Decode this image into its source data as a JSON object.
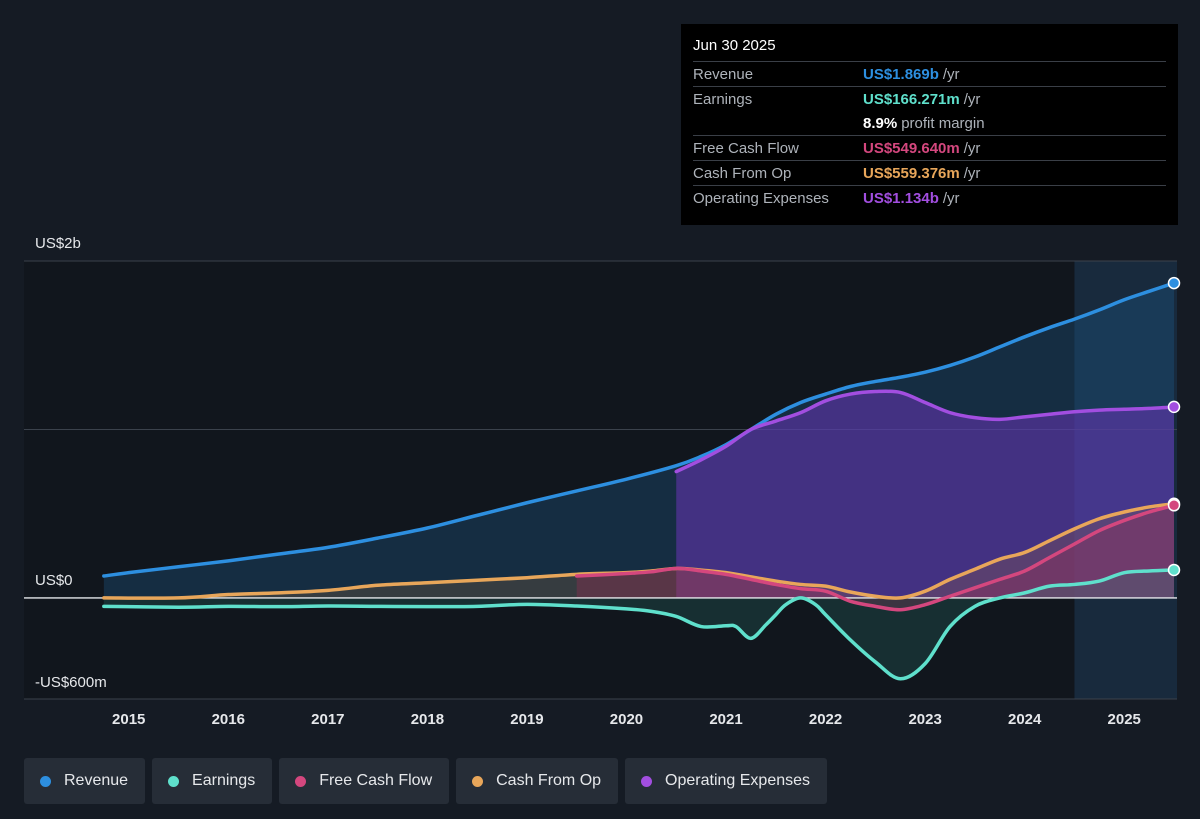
{
  "tooltip": {
    "date": "Jun 30 2025",
    "rows": [
      {
        "label": "Revenue",
        "value": "US$1.869b",
        "unit": "/yr",
        "color": "#2d8fe0"
      },
      {
        "label": "Earnings",
        "value": "US$166.271m",
        "unit": "/yr",
        "color": "#5fe0cc"
      },
      {
        "label": "",
        "value": "8.9%",
        "unit": "profit margin",
        "color": "#ffffff"
      },
      {
        "label": "Free Cash Flow",
        "value": "US$549.640m",
        "unit": "/yr",
        "color": "#d4477e"
      },
      {
        "label": "Cash From Op",
        "value": "US$559.376m",
        "unit": "/yr",
        "color": "#e8a65a"
      },
      {
        "label": "Operating Expenses",
        "value": "US$1.134b",
        "unit": "/yr",
        "color": "#a24ee0"
      }
    ]
  },
  "legend": [
    {
      "label": "Revenue",
      "color": "#2d8fe0"
    },
    {
      "label": "Earnings",
      "color": "#5fe0cc"
    },
    {
      "label": "Free Cash Flow",
      "color": "#d4477e"
    },
    {
      "label": "Cash From Op",
      "color": "#e8a65a"
    },
    {
      "label": "Operating Expenses",
      "color": "#a24ee0"
    }
  ],
  "chart_data": {
    "type": "area",
    "y_tick_labels": [
      "US$2b",
      "US$0",
      "-US$600m"
    ],
    "ylim": [
      -600,
      2000
    ],
    "xlim": [
      2014.4,
      2025.5
    ],
    "x_ticks": [
      2015,
      2016,
      2017,
      2018,
      2019,
      2020,
      2021,
      2022,
      2023,
      2024,
      2025
    ],
    "x_tick_labels": [
      "2015",
      "2016",
      "2017",
      "2018",
      "2019",
      "2020",
      "2021",
      "2022",
      "2023",
      "2024",
      "2025"
    ],
    "highlight_range": [
      2024.5,
      2025.5
    ],
    "series": [
      {
        "name": "Revenue",
        "color": "#2d8fe0",
        "x": [
          2014.75,
          2015.0,
          2015.5,
          2016.0,
          2016.5,
          2017.0,
          2017.5,
          2018.0,
          2018.5,
          2019.0,
          2019.5,
          2020.0,
          2020.5,
          2020.75,
          2021.0,
          2021.25,
          2021.5,
          2021.75,
          2022.0,
          2022.25,
          2022.5,
          2022.75,
          2023.0,
          2023.25,
          2023.5,
          2023.75,
          2024.0,
          2024.25,
          2024.5,
          2024.75,
          2025.0,
          2025.25,
          2025.5
        ],
        "values": [
          130,
          150,
          185,
          220,
          260,
          300,
          355,
          415,
          490,
          565,
          635,
          705,
          785,
          840,
          910,
          1000,
          1090,
          1160,
          1210,
          1255,
          1285,
          1310,
          1340,
          1380,
          1430,
          1490,
          1550,
          1605,
          1655,
          1710,
          1770,
          1820,
          1869
        ]
      },
      {
        "name": "Earnings",
        "color": "#5fe0cc",
        "x": [
          2014.75,
          2015.5,
          2016.0,
          2016.5,
          2017.0,
          2017.5,
          2018.0,
          2018.5,
          2019.0,
          2019.5,
          2020.0,
          2020.25,
          2020.5,
          2020.75,
          2021.0,
          2021.1,
          2021.25,
          2021.4,
          2021.5,
          2021.6,
          2021.75,
          2021.9,
          2022.0,
          2022.25,
          2022.5,
          2022.75,
          2023.0,
          2023.25,
          2023.5,
          2023.75,
          2024.0,
          2024.25,
          2024.5,
          2024.75,
          2025.0,
          2025.25,
          2025.5
        ],
        "values": [
          -50,
          -55,
          -50,
          -52,
          -48,
          -50,
          -52,
          -50,
          -38,
          -48,
          -65,
          -80,
          -110,
          -170,
          -165,
          -170,
          -240,
          -160,
          -100,
          -40,
          0,
          -40,
          -100,
          -250,
          -380,
          -480,
          -390,
          -170,
          -50,
          0,
          30,
          70,
          80,
          100,
          150,
          160,
          166
        ]
      },
      {
        "name": "Free Cash Flow",
        "color": "#d4477e",
        "x": [
          2019.5,
          2020.0,
          2020.25,
          2020.5,
          2020.75,
          2021.0,
          2021.25,
          2021.5,
          2021.75,
          2022.0,
          2022.25,
          2022.5,
          2022.75,
          2023.0,
          2023.25,
          2023.5,
          2023.75,
          2024.0,
          2024.25,
          2024.5,
          2024.75,
          2025.0,
          2025.25,
          2025.5
        ],
        "values": [
          130,
          145,
          155,
          175,
          160,
          140,
          110,
          80,
          55,
          40,
          -20,
          -50,
          -70,
          -40,
          10,
          60,
          110,
          160,
          240,
          320,
          400,
          460,
          510,
          550
        ]
      },
      {
        "name": "Cash From Op",
        "color": "#e8a65a",
        "x": [
          2014.75,
          2015.5,
          2016.0,
          2016.5,
          2017.0,
          2017.5,
          2018.0,
          2018.5,
          2019.0,
          2019.5,
          2020.0,
          2020.25,
          2020.5,
          2020.75,
          2021.0,
          2021.25,
          2021.5,
          2021.75,
          2022.0,
          2022.25,
          2022.5,
          2022.75,
          2023.0,
          2023.25,
          2023.5,
          2023.75,
          2024.0,
          2024.25,
          2024.5,
          2024.75,
          2025.0,
          2025.25,
          2025.5
        ],
        "values": [
          0,
          0,
          20,
          30,
          45,
          75,
          90,
          105,
          120,
          140,
          150,
          160,
          175,
          165,
          150,
          125,
          100,
          80,
          70,
          35,
          10,
          0,
          40,
          110,
          170,
          230,
          270,
          340,
          410,
          470,
          510,
          540,
          559
        ]
      },
      {
        "name": "Operating Expenses",
        "color": "#a24ee0",
        "x": [
          2020.5,
          2020.75,
          2021.0,
          2021.25,
          2021.5,
          2021.75,
          2022.0,
          2022.25,
          2022.5,
          2022.75,
          2023.0,
          2023.25,
          2023.5,
          2023.75,
          2024.0,
          2024.25,
          2024.5,
          2024.75,
          2025.0,
          2025.25,
          2025.5
        ],
        "values": [
          750,
          820,
          900,
          1000,
          1050,
          1100,
          1170,
          1210,
          1225,
          1220,
          1160,
          1100,
          1070,
          1060,
          1075,
          1090,
          1105,
          1115,
          1120,
          1125,
          1134
        ]
      }
    ]
  }
}
